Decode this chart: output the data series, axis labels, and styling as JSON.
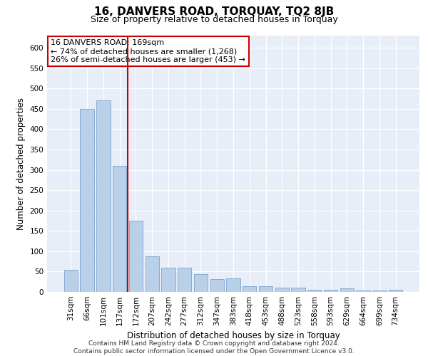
{
  "title1": "16, DANVERS ROAD, TORQUAY, TQ2 8JB",
  "title2": "Size of property relative to detached houses in Torquay",
  "xlabel": "Distribution of detached houses by size in Torquay",
  "ylabel": "Number of detached properties",
  "categories": [
    "31sqm",
    "66sqm",
    "101sqm",
    "137sqm",
    "172sqm",
    "207sqm",
    "242sqm",
    "277sqm",
    "312sqm",
    "347sqm",
    "383sqm",
    "418sqm",
    "453sqm",
    "488sqm",
    "523sqm",
    "558sqm",
    "593sqm",
    "629sqm",
    "664sqm",
    "699sqm",
    "734sqm"
  ],
  "values": [
    55,
    450,
    470,
    310,
    175,
    88,
    60,
    60,
    43,
    32,
    33,
    14,
    14,
    10,
    10,
    6,
    6,
    8,
    4,
    4,
    5
  ],
  "bar_color": "#bad0e8",
  "bar_edge_color": "#6699cc",
  "vline_x": 3.5,
  "vline_color": "#cc0000",
  "annotation_title": "16 DANVERS ROAD: 169sqm",
  "annotation_line1": "← 74% of detached houses are smaller (1,268)",
  "annotation_line2": "26% of semi-detached houses are larger (453) →",
  "annotation_box_color": "#ffffff",
  "annotation_box_edge_color": "#cc0000",
  "ylim": [
    0,
    630
  ],
  "yticks": [
    0,
    50,
    100,
    150,
    200,
    250,
    300,
    350,
    400,
    450,
    500,
    550,
    600
  ],
  "footer1": "Contains HM Land Registry data © Crown copyright and database right 2024.",
  "footer2": "Contains public sector information licensed under the Open Government Licence v3.0.",
  "plot_bg_color": "#e8eef8",
  "title1_fontsize": 11,
  "title2_fontsize": 9,
  "xlabel_fontsize": 8.5,
  "ylabel_fontsize": 8.5,
  "tick_fontsize": 7.5,
  "footer_fontsize": 6.5,
  "annotation_fontsize": 8
}
